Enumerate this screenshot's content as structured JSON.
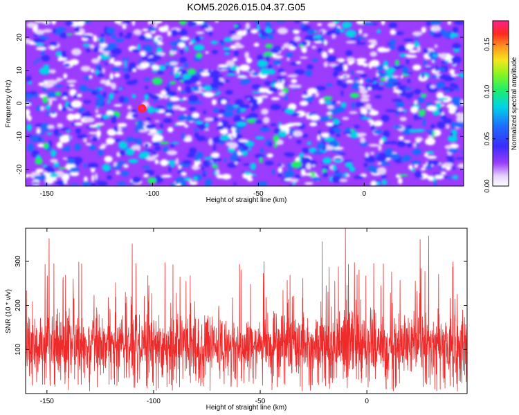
{
  "title": "KOM5.2026.015.04.37.G05",
  "colors": {
    "frame": "#000000",
    "snr_line": "#ee2a2a",
    "spectrogram_bg": "#9b3cff"
  },
  "chart_data": [
    {
      "type": "heatmap",
      "xlabel": "Height of straight line (km)",
      "ylabel": "Frequency (Hz)",
      "xlim": [
        -160,
        47
      ],
      "ylim": [
        -25,
        25
      ],
      "xticks": [
        -150,
        -100,
        -50,
        0
      ],
      "xtick_labels": [
        "-150",
        "-100",
        "-50",
        "0"
      ],
      "yticks": [
        -20,
        -10,
        0,
        10,
        20
      ],
      "ytick_labels": [
        "-20",
        "-10",
        "0",
        "10",
        "20"
      ],
      "colorbar": {
        "label": "Normalized spectral amplitude",
        "range": [
          0.0,
          0.175
        ],
        "ticks": [
          0.0,
          0.05,
          0.1,
          0.15
        ],
        "tick_labels": [
          "0.00",
          "0.05",
          "0.10",
          "0.15"
        ],
        "colormap": "rainbow (white, purple, blue, cyan, green, yellow, orange, red, magenta)"
      },
      "peak": {
        "x": -105,
        "y": -1.5,
        "value": 0.17
      }
    },
    {
      "type": "line",
      "xlabel": "Height of straight line (km)",
      "ylabel": "SNR (10 * v/v)",
      "xlim": [
        -160,
        47
      ],
      "ylim": [
        0,
        375
      ],
      "xticks": [
        -150,
        -100,
        -50,
        0
      ],
      "xtick_labels": [
        "-150",
        "-100",
        "-50",
        "0"
      ],
      "yticks": [
        100,
        200,
        300
      ],
      "ytick_labels": [
        "100",
        "200",
        "300"
      ],
      "series": [
        {
          "name": "SNR",
          "baseline": 110,
          "spread": 75,
          "notable_peaks": [
            {
              "x": -149,
              "y": 352
            },
            {
              "x": -110,
              "y": 340
            },
            {
              "x": -10,
              "y": 375
            },
            {
              "x": -21,
              "y": 345
            },
            {
              "x": 29,
              "y": 358
            },
            {
              "x": 25,
              "y": 350
            }
          ]
        }
      ]
    }
  ]
}
